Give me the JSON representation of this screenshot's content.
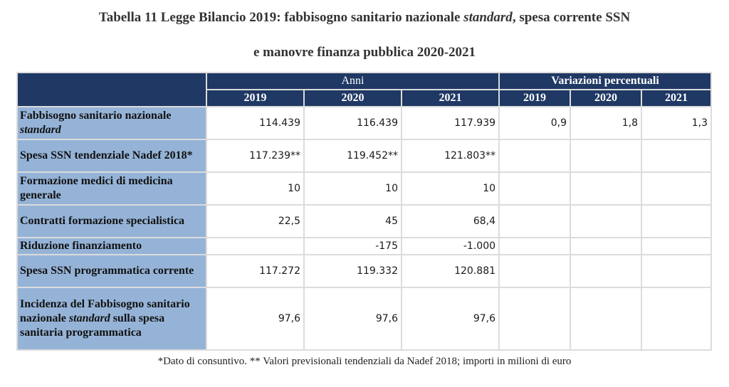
{
  "title": {
    "line1_before": "Tabella 11 Legge Bilancio 2019: fabbisogno sanitario nazionale ",
    "line1_italic": "standard",
    "line1_after": ", spesa corrente SSN",
    "line2": "e manovre finanza pubblica 2020-2021"
  },
  "header": {
    "group_anni": "Anni",
    "group_var": "Variazioni percentuali",
    "years_anni": [
      "2019",
      "2020",
      "2021"
    ],
    "years_var": [
      "2019",
      "2020",
      "2021"
    ]
  },
  "rows": [
    {
      "label_parts": [
        {
          "text": "Fabbisogno sanitario nazionale "
        },
        {
          "text": "standard",
          "italic": true
        }
      ],
      "values": [
        "114.439",
        "116.439",
        "117.939"
      ],
      "variations": [
        "0,9",
        "1,8",
        "1,3"
      ]
    },
    {
      "label_parts": [
        {
          "text": "Spesa SSN tendenziale Nadef 2018*"
        }
      ],
      "values": [
        "117.239**",
        "119.452**",
        "121.803**"
      ],
      "variations": [
        "",
        "",
        ""
      ]
    },
    {
      "label_parts": [
        {
          "text": "Formazione medici di medicina generale"
        }
      ],
      "values": [
        "10",
        "10",
        "10"
      ],
      "variations": [
        "",
        "",
        ""
      ]
    },
    {
      "label_parts": [
        {
          "text": "Contratti formazione specialistica"
        }
      ],
      "values": [
        "22,5",
        "45",
        "68,4"
      ],
      "variations": [
        "",
        "",
        ""
      ]
    },
    {
      "label_parts": [
        {
          "text": "Riduzione finanziamento"
        }
      ],
      "values": [
        "",
        "-175",
        "-1.000"
      ],
      "variations": [
        "",
        "",
        ""
      ]
    },
    {
      "label_parts": [
        {
          "text": "Spesa SSN programmatica corrente"
        }
      ],
      "values": [
        "117.272",
        "119.332",
        "120.881"
      ],
      "variations": [
        "",
        "",
        ""
      ]
    },
    {
      "label_parts": [
        {
          "text": "Incidenza del Fabbisogno sanitario nazionale "
        },
        {
          "text": "standard",
          "italic": true
        },
        {
          "text": " sulla spesa sanitaria programmatica"
        }
      ],
      "values": [
        "97,6",
        "97,6",
        "97,6"
      ],
      "variations": [
        "",
        "",
        ""
      ]
    }
  ],
  "footnote": "*Dato di consuntivo. ** Valori previsionali tendenziali da Nadef 2018; importi in milioni di euro"
}
